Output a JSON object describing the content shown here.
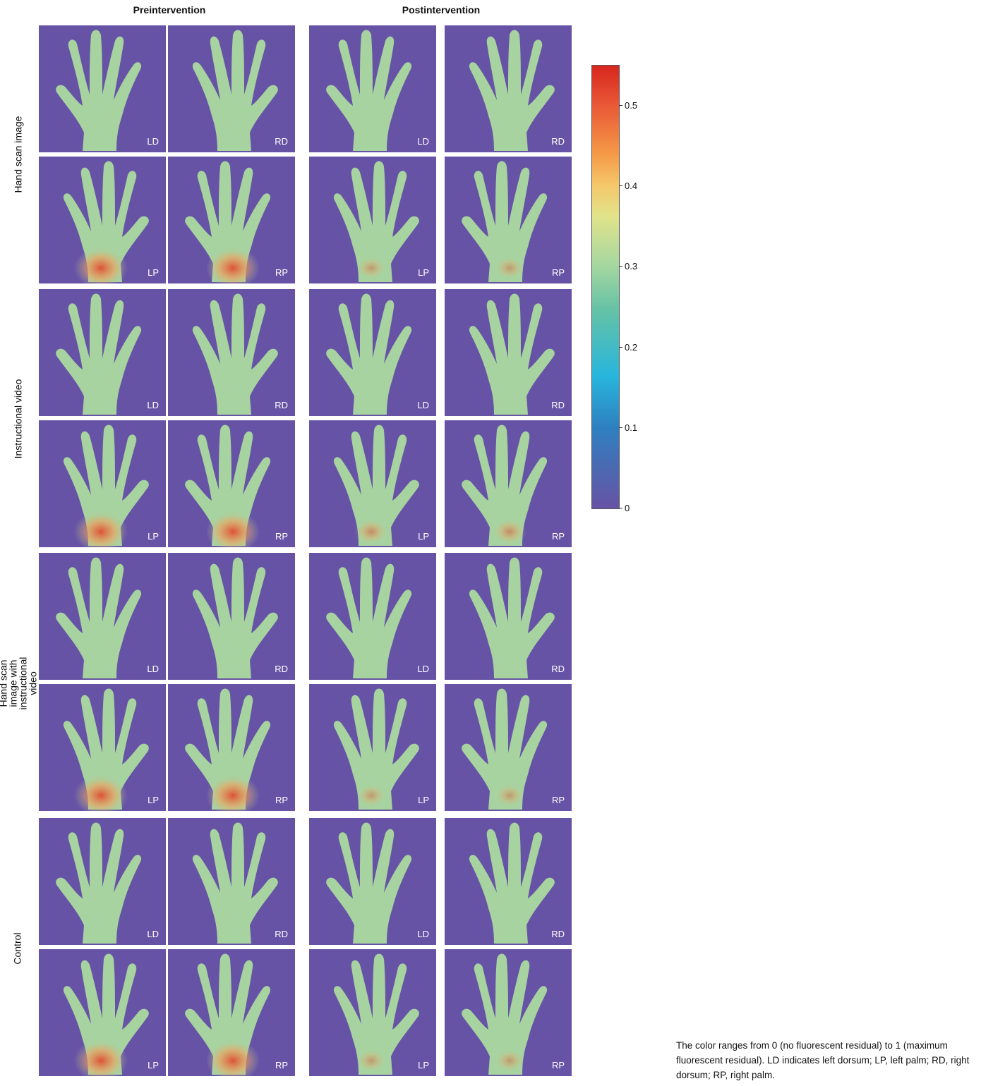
{
  "chart_data": {
    "type": "heatmap",
    "columns": [
      "Preintervention",
      "Postintervention"
    ],
    "rows": [
      {
        "label": "Hand scan image"
      },
      {
        "label": "Instructional video"
      },
      {
        "label": "Hand scan image with instructional video"
      },
      {
        "label": "Control"
      }
    ],
    "views": [
      "LD",
      "RD",
      "LP",
      "RP"
    ],
    "colorbar": {
      "ticks": [
        "0",
        "0.1",
        "0.2",
        "0.3",
        "0.4",
        "0.5"
      ],
      "tick_values": [
        0,
        0.1,
        0.2,
        0.3,
        0.4,
        0.5
      ],
      "range": [
        0,
        0.55
      ],
      "colormap": "spectral (red = high residual, purple = zero)"
    },
    "background_color": "#6753a5",
    "hand_base_color": "#a7d3a1",
    "hotspot_color": "#e2432b"
  },
  "footnote": "The color ranges from 0 (no fluorescent residual) to 1 (maximum fluorescent residual). LD indicates left dorsum; LP, left palm; RD, right dorsum; RP, right palm."
}
